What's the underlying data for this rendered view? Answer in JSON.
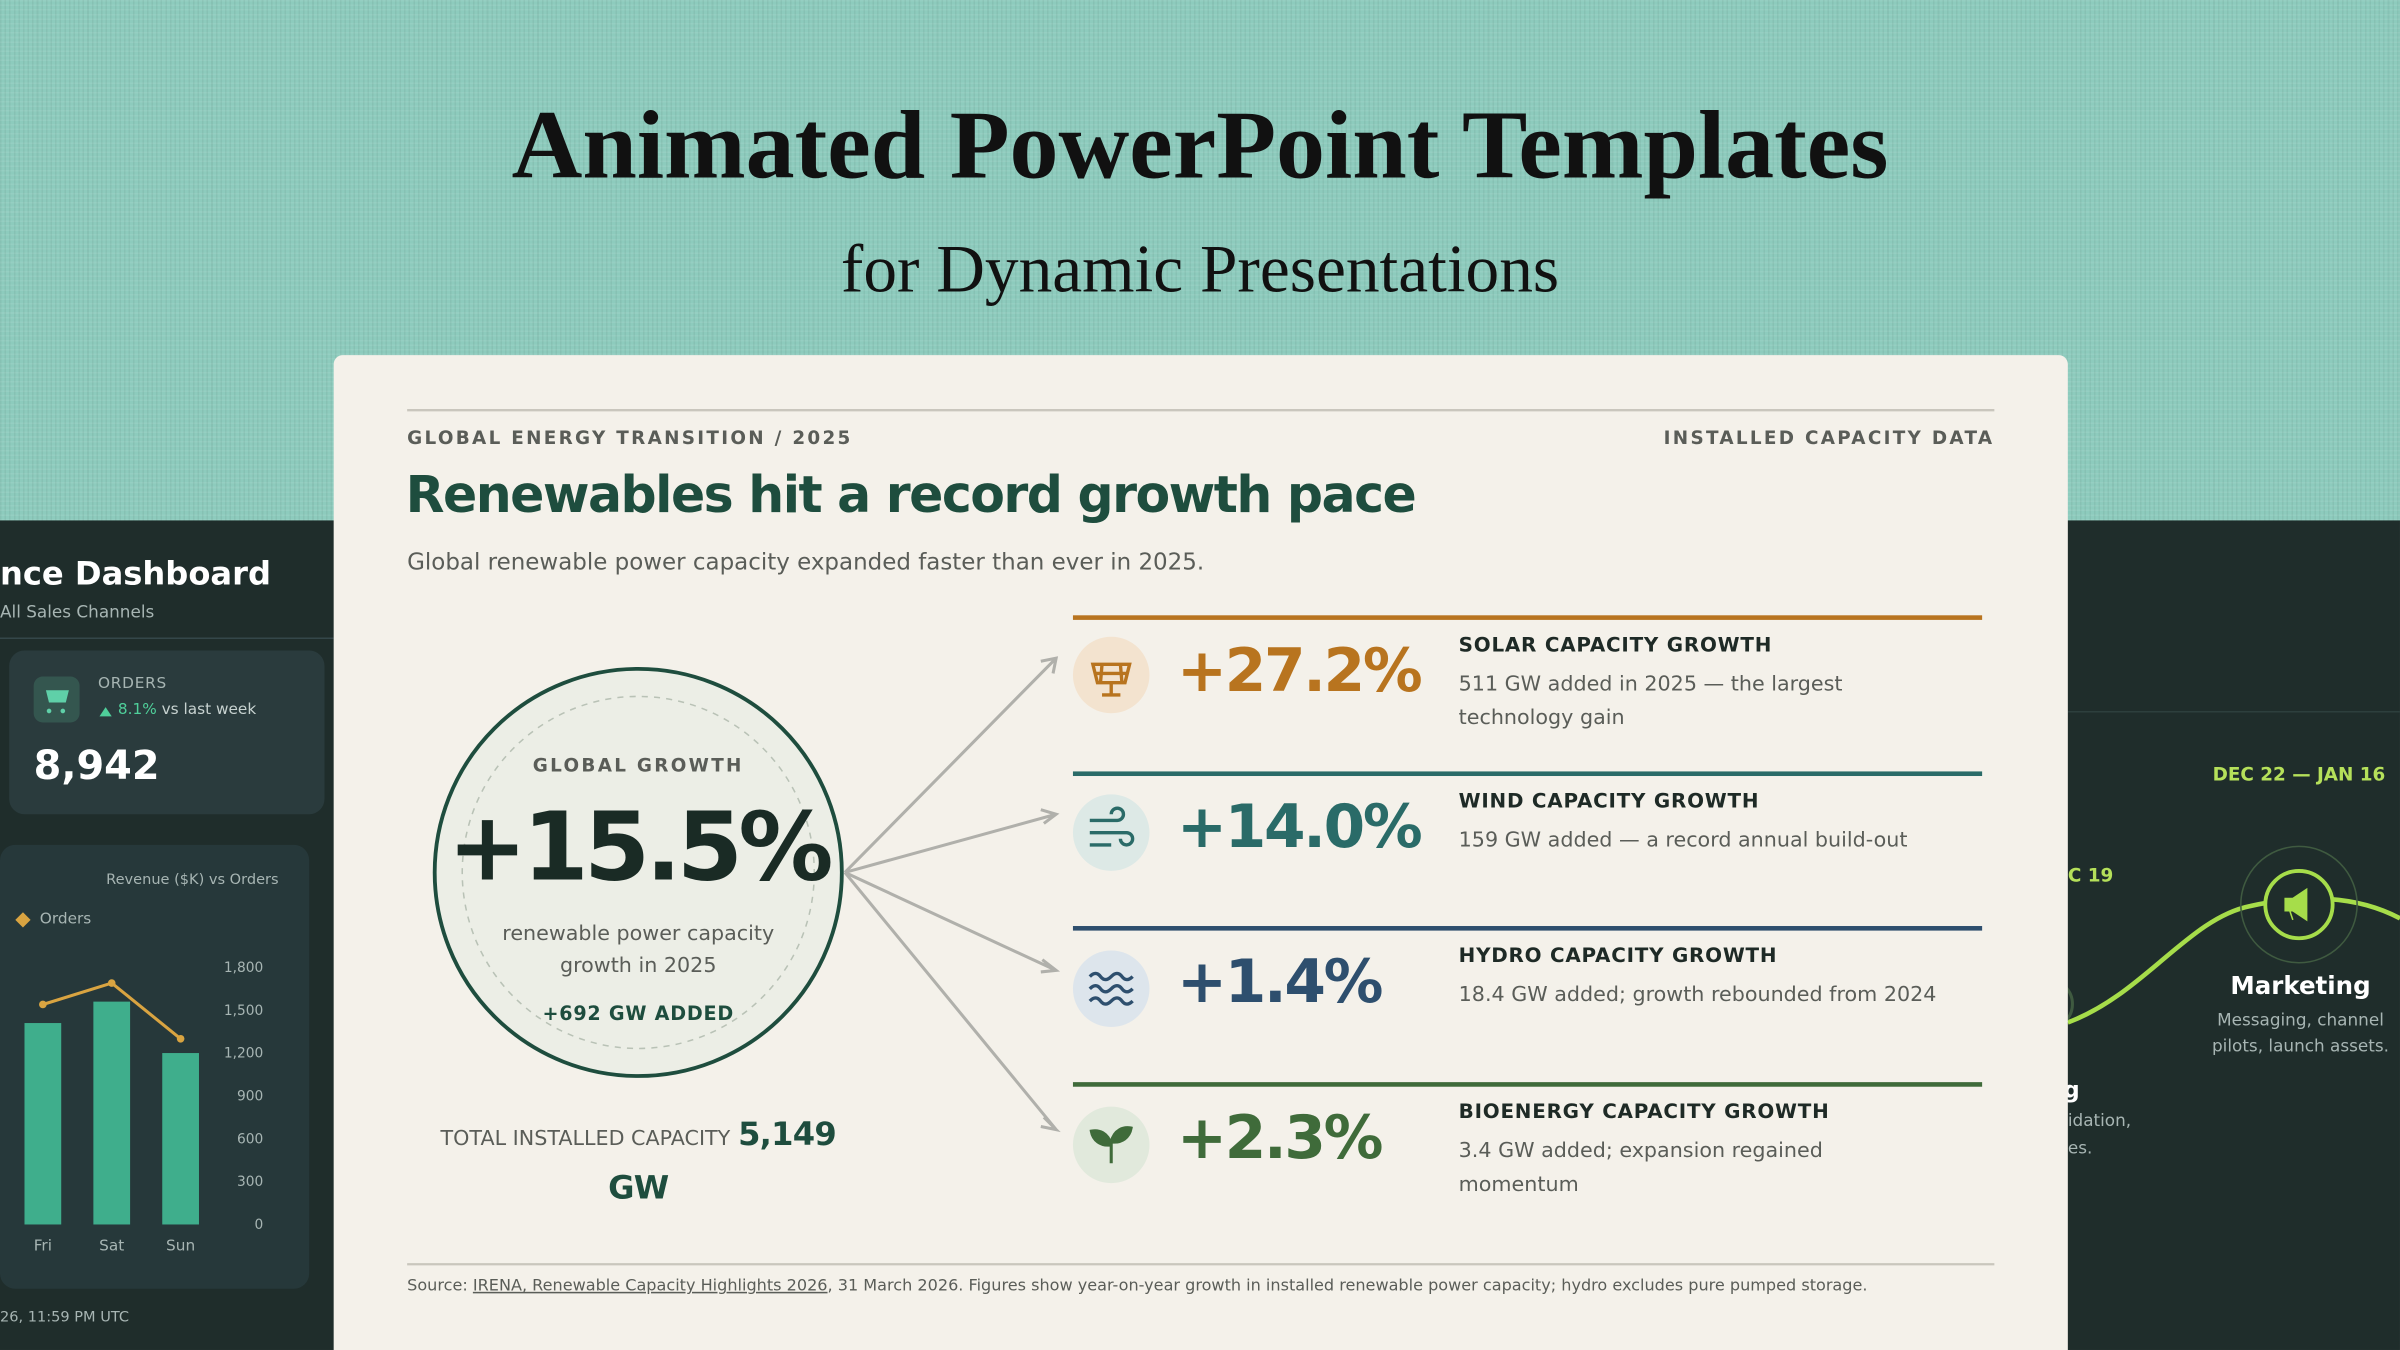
{
  "header": {
    "title": "Animated PowerPoint Templates",
    "subtitle": "for Dynamic Presentations"
  },
  "left_panel": {
    "title": "nce Dashboard",
    "subtitle": "All Sales Channels",
    "orders_card": {
      "label": "ORDERS",
      "change": "8.1%",
      "change_note": "vs last week",
      "value": "8,942"
    },
    "chart": {
      "title": "Revenue ($K) vs Orders",
      "legend": "Orders",
      "categories": [
        "Fri",
        "Sat",
        "Sun"
      ],
      "bars": [
        1410,
        1560,
        1200
      ],
      "line": [
        1540,
        1690,
        1300
      ],
      "bar_color": "#3fae8c",
      "line_color": "#d9a441",
      "ylim": [
        0,
        1800
      ],
      "yticks": [
        0,
        300,
        600,
        900,
        {
          "value": 1200,
          "label": "1,200"
        },
        {
          "value": 1500,
          "label": "1,500"
        },
        {
          "value": 1800,
          "label": "1,800"
        }
      ]
    },
    "footer": "26, 11:59 PM UTC"
  },
  "slide": {
    "kicker": "GLOBAL ENERGY TRANSITION / 2025",
    "tag": "INSTALLED CAPACITY DATA",
    "title": "Renewables hit a record growth pace",
    "subtitle": "Global renewable power capacity expanded faster than ever in 2025.",
    "hero": {
      "label": "GLOBAL GROWTH",
      "value": "+15.5%",
      "caption": "renewable power capacity growth in 2025",
      "note": "+692 GW ADDED"
    },
    "total": {
      "label": "TOTAL INSTALLED CAPACITY",
      "value": "5,149 GW"
    },
    "rows": [
      {
        "value": "+27.2%",
        "heading": "SOLAR CAPACITY GROWTH",
        "description": "511 GW added in 2025 — the largest technology gain",
        "color": "#b8741f"
      },
      {
        "value": "+14.0%",
        "heading": "WIND CAPACITY GROWTH",
        "description": "159 GW added — a record annual build-out",
        "color": "#2a6b68"
      },
      {
        "value": "+1.4%",
        "heading": "HYDRO CAPACITY GROWTH",
        "description": "18.4 GW added; growth rebounded from 2024",
        "color": "#2e4f6e"
      },
      {
        "value": "+2.3%",
        "heading": "BIOENERGY CAPACITY GROWTH",
        "description": "3.4 GW added; expansion regained momentum",
        "color": "#3f6b3a"
      }
    ],
    "source": {
      "prefix": "Source:",
      "link": "IRENA, Renewable Capacity Highlights 2026",
      "suffix": ", 31 March 2026. Figures show year-on-year growth in installed renewable power capacity; hydro excludes pure pumped storage."
    }
  },
  "right_panel": {
    "date": "DEC 22 — JAN 16",
    "prev_date": "C 19",
    "milestone": {
      "title": "Marketing",
      "description": "Messaging, channel pilots, launch assets."
    },
    "partial_title": "g",
    "partial_description": [
      "idation,",
      "es."
    ]
  }
}
